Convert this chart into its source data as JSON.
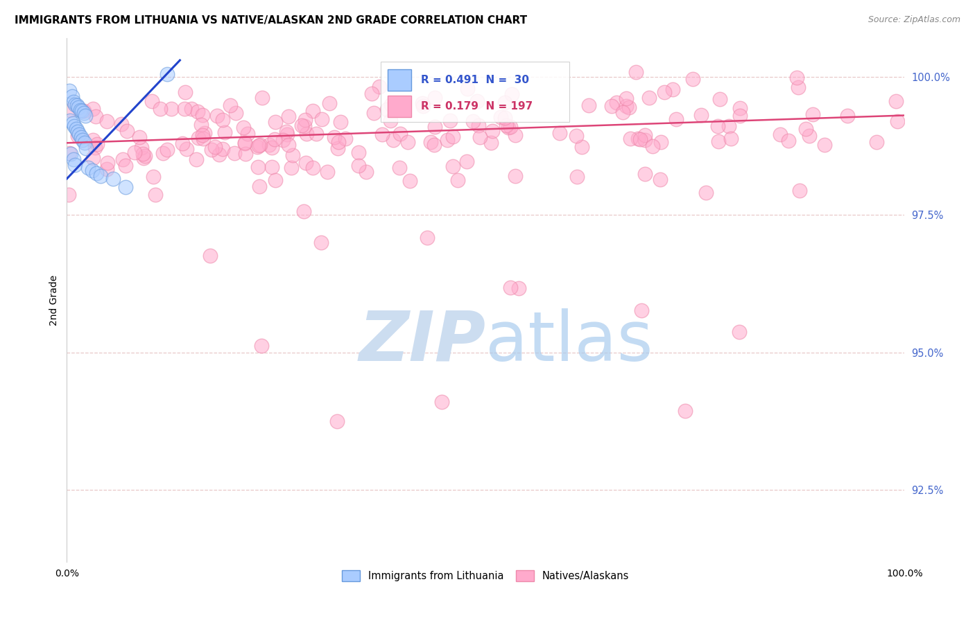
{
  "title": "IMMIGRANTS FROM LITHUANIA VS NATIVE/ALASKAN 2ND GRADE CORRELATION CHART",
  "source": "Source: ZipAtlas.com",
  "ylabel": "2nd Grade",
  "ytick_labels": [
    "92.5%",
    "95.0%",
    "97.5%",
    "100.0%"
  ],
  "ytick_values": [
    0.925,
    0.95,
    0.975,
    1.0
  ],
  "xlim": [
    0.0,
    1.0
  ],
  "ylim": [
    0.912,
    1.007
  ],
  "legend_label_blue": "Immigrants from Lithuania",
  "legend_label_pink": "Natives/Alaskans",
  "legend_R_blue": "R = 0.491",
  "legend_N_blue": "N =  30",
  "legend_R_pink": "R = 0.179",
  "legend_N_pink": "N = 197",
  "blue_color_face": "#aaccff",
  "blue_color_edge": "#6699dd",
  "pink_color_face": "#ffaacc",
  "pink_color_edge": "#ee88aa",
  "blue_line_color": "#2244cc",
  "pink_line_color": "#dd4477",
  "background_color": "#ffffff",
  "watermark_color": "#ccddf0",
  "title_color": "#000000",
  "source_color": "#888888",
  "ytick_color": "#4466cc",
  "xtick_color": "#000000",
  "ylabel_color": "#000000",
  "grid_color": "#e8c8c8",
  "spine_color": "#cccccc"
}
